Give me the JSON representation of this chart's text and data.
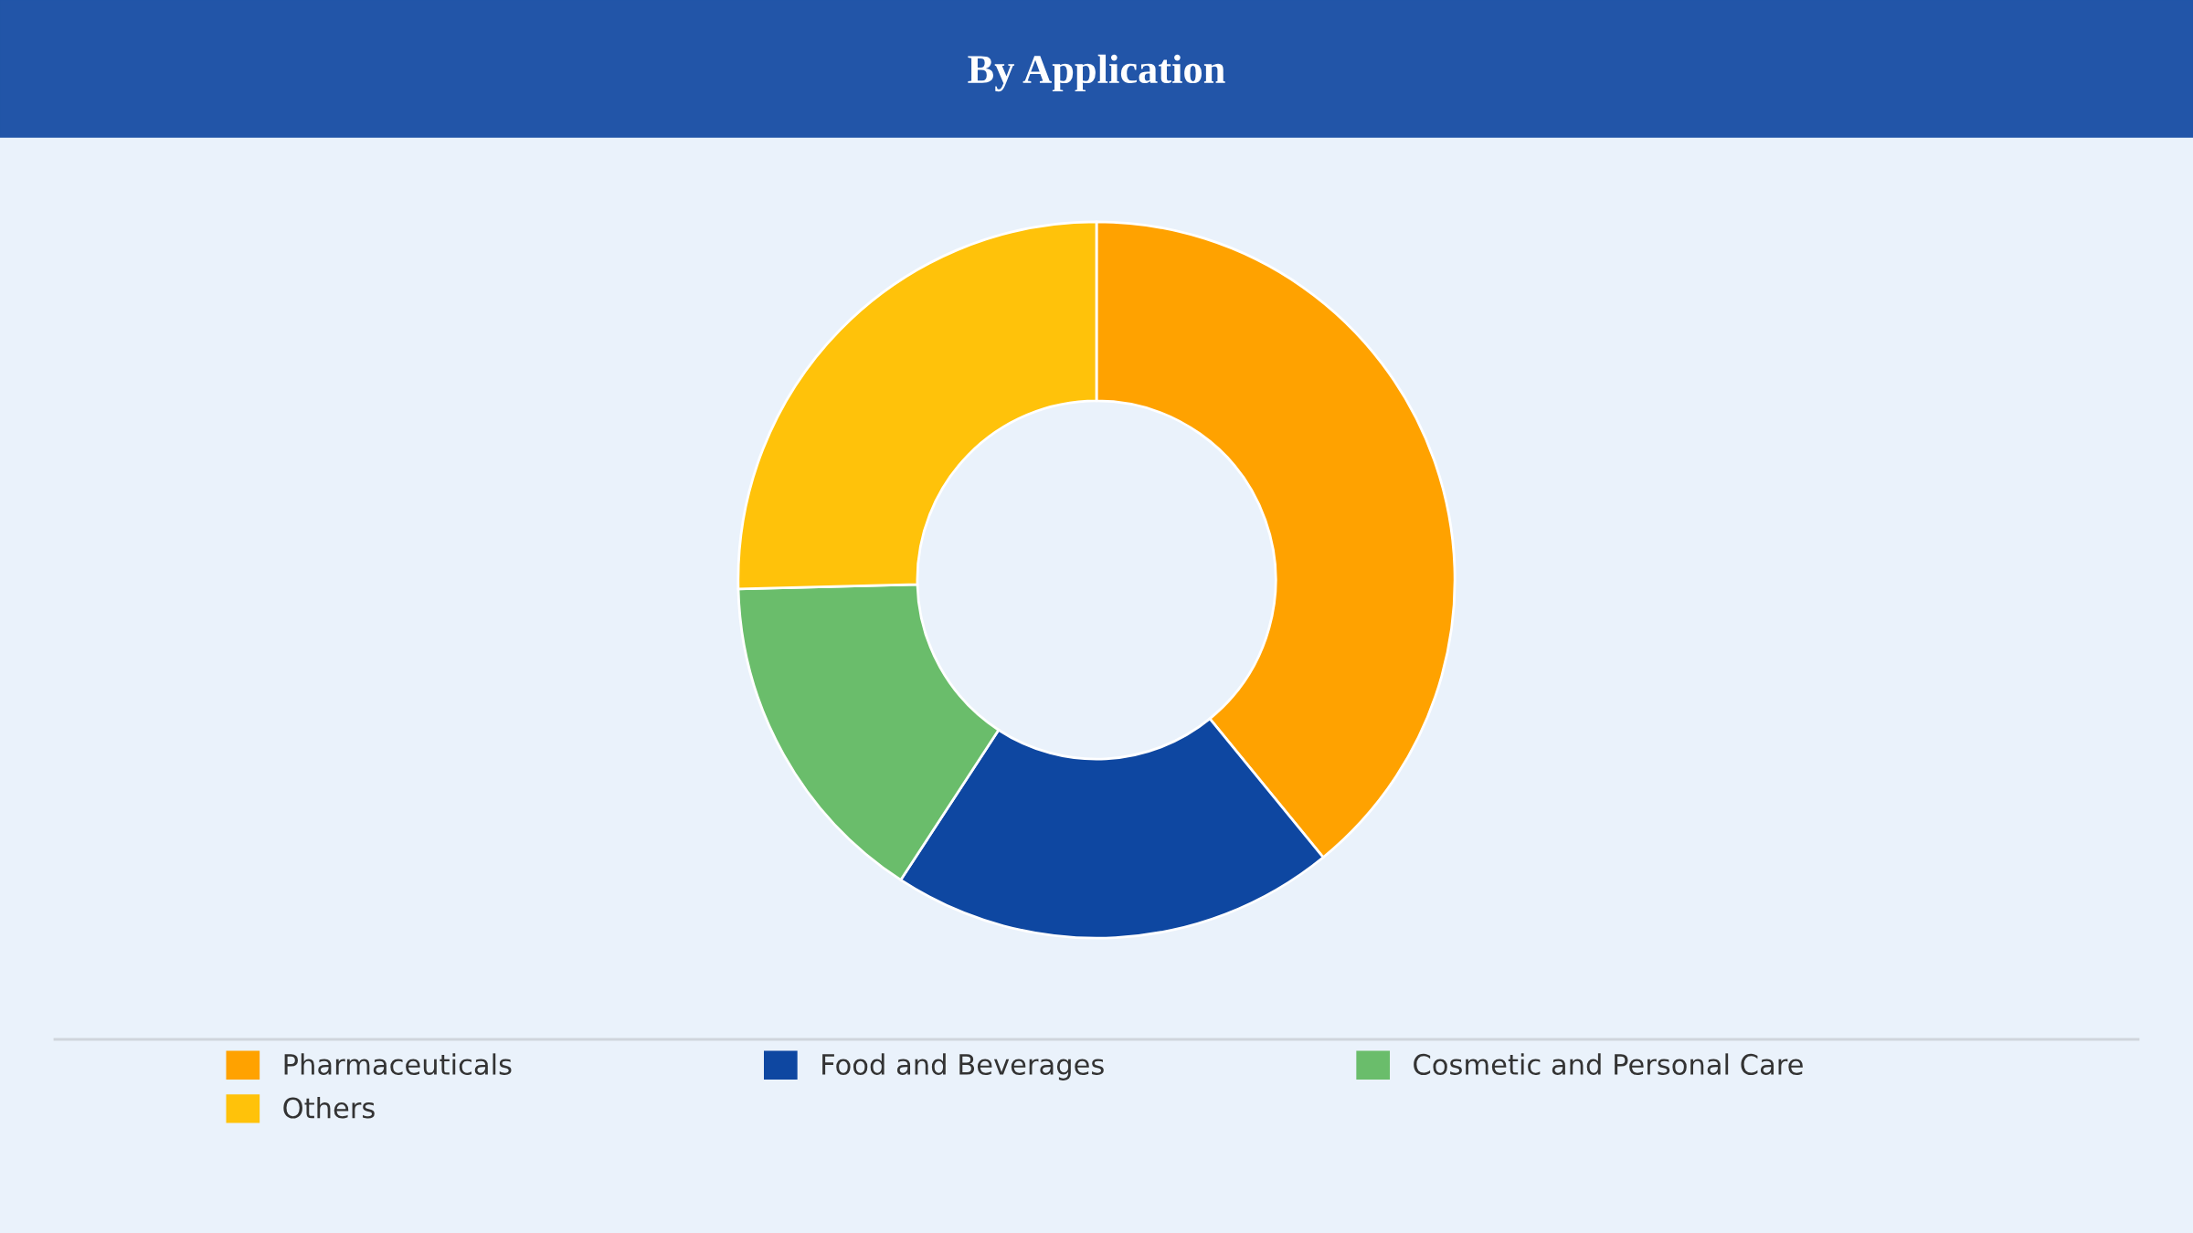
{
  "chart_data": {
    "type": "donut",
    "title": "By Application",
    "categories": [
      "Pharmaceuticals",
      "Food and Beverages",
      "Cosmetic and Personal Care",
      "Others"
    ],
    "values": [
      39.1,
      20.1,
      15.4,
      25.4
    ],
    "colors": [
      "#ffa200",
      "#0e47a1",
      "#6abd6b",
      "#ffc20a"
    ],
    "legend": "bottom"
  }
}
